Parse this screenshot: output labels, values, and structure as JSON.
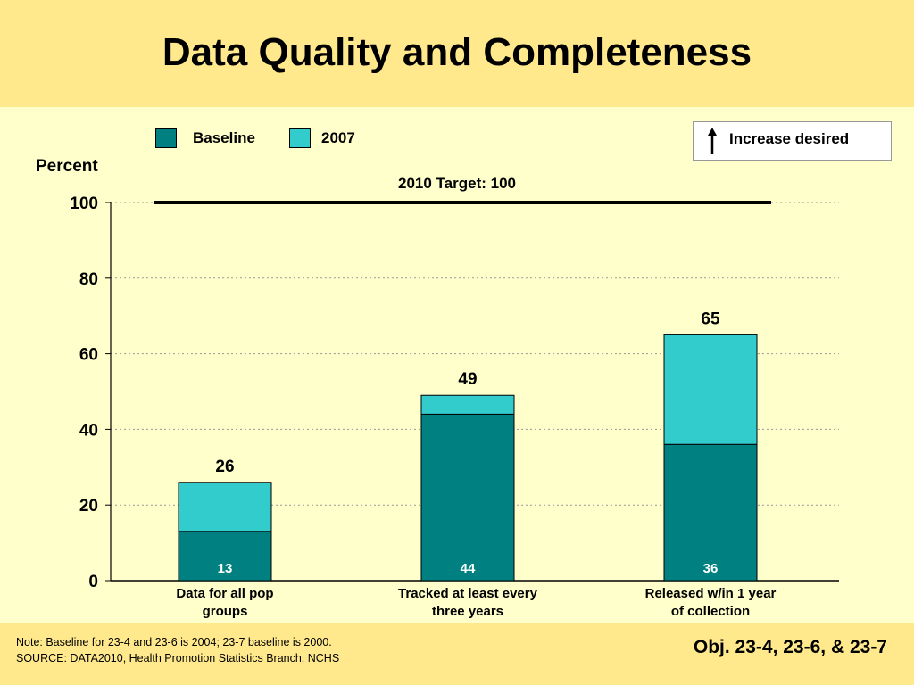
{
  "slide": {
    "title": "Data Quality and Completeness",
    "note_line1": "Note: Baseline for 23-4 and 23-6 is 2004; 23-7 baseline is 2000.",
    "note_line2": "SOURCE:  DATA2010, Health Promotion Statistics Branch, NCHS",
    "objective": "Obj. 23-4, 23-6, & 23-7",
    "increase_desired": "Increase desired",
    "colors": {
      "background": "#FFFFCC",
      "band": "#FFE98C",
      "baseline": "#008080",
      "y2007": "#33CCCC"
    }
  },
  "chart_data": {
    "type": "bar",
    "stacked": true,
    "ylabel": "Percent",
    "ylim": [
      0,
      100
    ],
    "yticks": [
      0,
      20,
      40,
      60,
      80,
      100
    ],
    "grid": true,
    "legend_position": "top-left",
    "target": {
      "label": "2010 Target: 100",
      "value": 100
    },
    "categories": [
      [
        "Data for all pop",
        "groups"
      ],
      [
        "Tracked at least every",
        "three years"
      ],
      [
        "Released w/in 1 year",
        "of collection"
      ]
    ],
    "series": [
      {
        "name": "Baseline",
        "values": [
          13,
          44,
          36
        ],
        "color": "#008080"
      },
      {
        "name": "2007",
        "values": [
          26,
          49,
          65
        ],
        "color": "#33CCCC"
      }
    ]
  }
}
